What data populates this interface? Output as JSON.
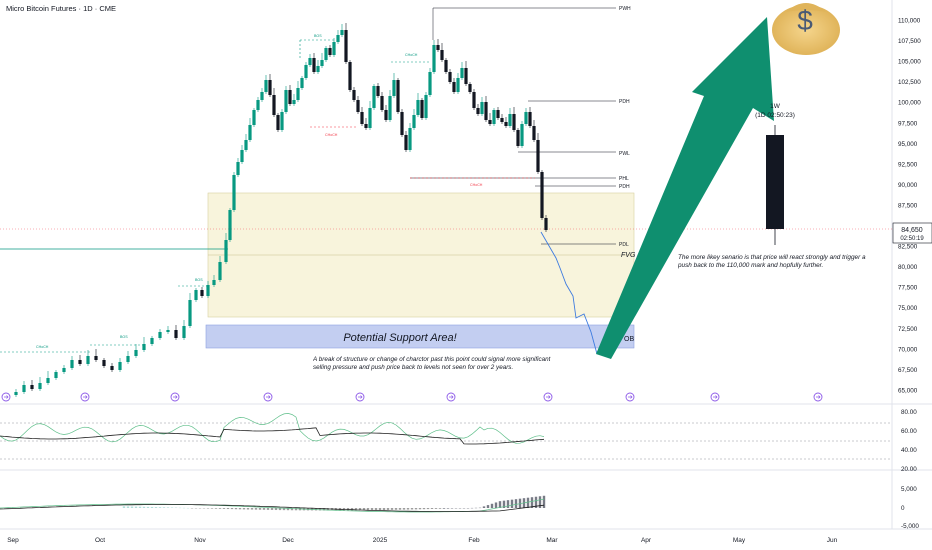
{
  "header": {
    "symbol_title": "Micro Bitcoin Futures · 1D · CME"
  },
  "price_axis": {
    "ticks": [
      "110,000",
      "107,500",
      "105,000",
      "102,500",
      "100,000",
      "97,500",
      "95,000",
      "92,500",
      "90,000",
      "87,500",
      "85,000",
      "82,500",
      "80,000",
      "77,500",
      "75,000",
      "72,500",
      "70,000",
      "67,500",
      "65,000"
    ],
    "current_price": "84,650",
    "countdown": "02:50:19",
    "current_price_color": "#131722"
  },
  "time_axis": {
    "labels": [
      "Sep",
      "Oct",
      "Nov",
      "Dec",
      "2025",
      "Feb",
      "Mar",
      "Apr",
      "May",
      "Jun"
    ]
  },
  "levels": {
    "pwh": "PWH",
    "pdh_top": "PDH",
    "pwl": "PWL",
    "pdl_short": "PHL",
    "pdh": "PDH",
    "pdl": "PDL",
    "fvg": "FVG",
    "ob": "OB"
  },
  "structure_labels": {
    "choch_green": "CHoCH",
    "bos": "BOS",
    "choch_red": "CHoCH"
  },
  "annotations": {
    "support_area": "Potential Support Area!",
    "break_note": "A break of structure or change of charctor past this point could signal more significant selling pressure and push price back to levels not seen for over 2 years.",
    "scenario_note": "The more likey senario is that price will react strongly and trigger a push back to the 110,000 mark and hopfully further.",
    "money_bag_symbol": "$"
  },
  "weekly_box": {
    "timeframe": "1W",
    "countdown": "(1D 02:50:23)"
  },
  "rsi_panel": {
    "ticks": [
      "80.00",
      "60.00",
      "40.00",
      "20.00"
    ]
  },
  "macd_panel": {
    "ticks": [
      "5,000",
      "0",
      "-5,000"
    ]
  },
  "colors": {
    "bull": "#089981",
    "bear": "#131722",
    "fvg_zone": "#f5f0d0",
    "support_zone": "#b8c6ef",
    "arrow": "#0f8f6f",
    "projection": "#3d7be0",
    "rsi_line": "#5fbf8a",
    "rsi_ma": "#1e1e1e"
  }
}
